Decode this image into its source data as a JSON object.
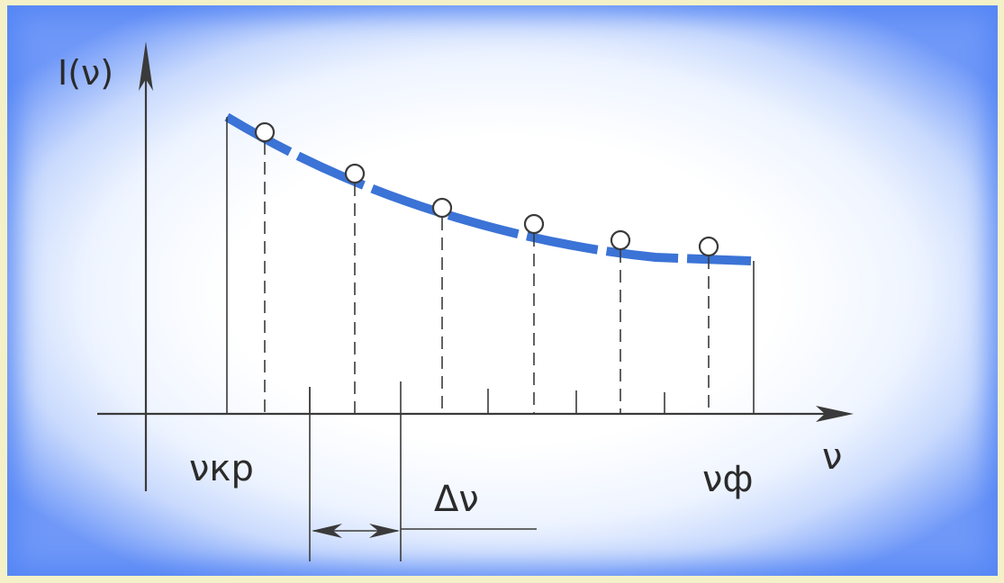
{
  "diagram": {
    "y_axis_label": "I(ν)",
    "x_axis_label": "ν",
    "start_label": "νкр",
    "end_label": "νф",
    "step_label": "Δν",
    "curve_color": "#3b73d6",
    "line_color": "#3a3a3a",
    "background_edge_color": "#6f98f8",
    "points": 6
  }
}
